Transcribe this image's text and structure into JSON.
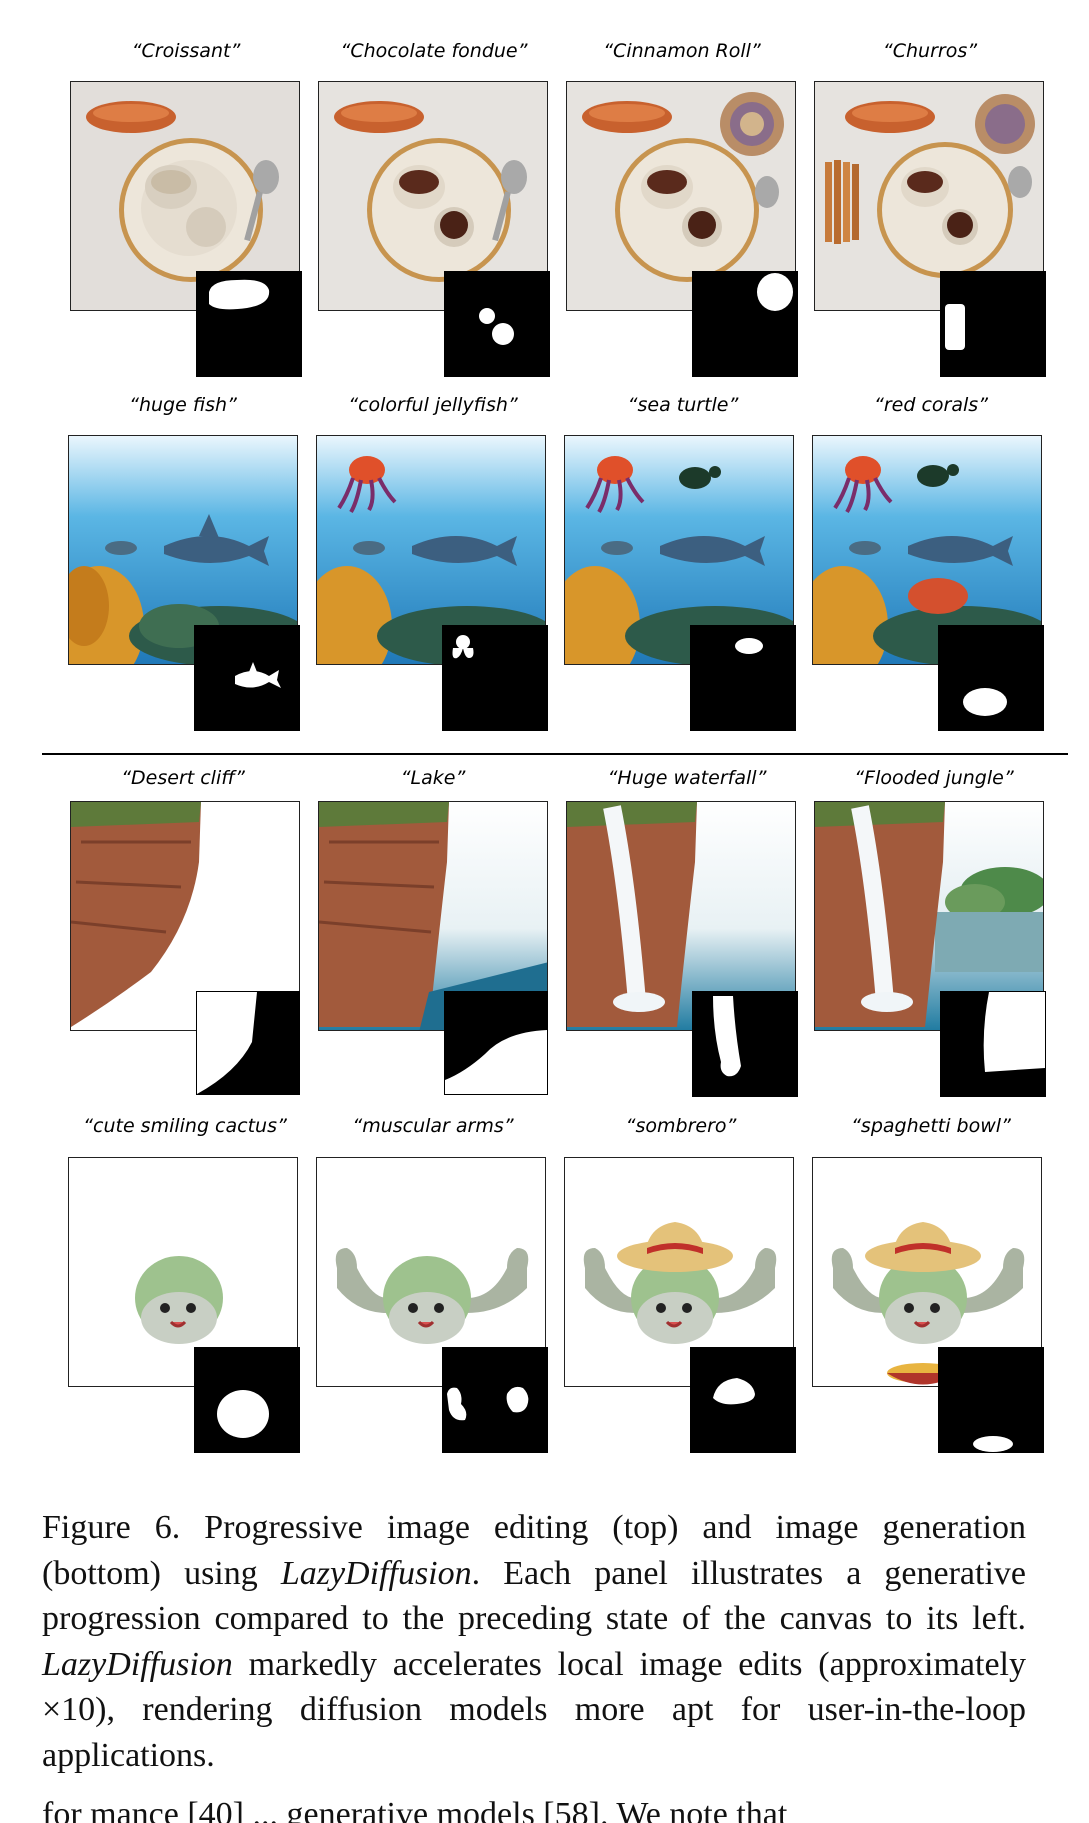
{
  "rows": [
    {
      "captions": [
        "“Croissant”",
        "“Chocolate fondue”",
        "“Cinnamon Roll”",
        "“Churros”"
      ]
    },
    {
      "captions": [
        "“huge fish”",
        "“colorful jellyfish”",
        "“sea turtle”",
        "“red corals”"
      ]
    },
    {
      "captions": [
        "“Desert cliff”",
        "“Lake”",
        "“Huge waterfall”",
        "“Flooded jungle”"
      ]
    },
    {
      "captions": [
        "“cute smiling cactus”",
        "“muscular arms”",
        "“sombrero”",
        "“spaghetti bowl”"
      ]
    }
  ],
  "caption": {
    "label": "Figure 6.",
    "part1": " Progressive image editing (top) and image generation (bottom) using ",
    "method1": "LazyDiffusion",
    "part2": ". Each panel illustrates a generative progression compared to the preceding state of the canvas to its left. ",
    "method2": "LazyDiffusion",
    "part3": " markedly accelerates local image edits (approximately ×10), rendering diffusion models more apt for user-in-the-loop applications."
  },
  "trailing_text": "for mance [40] ... generative models [58]. We note that"
}
